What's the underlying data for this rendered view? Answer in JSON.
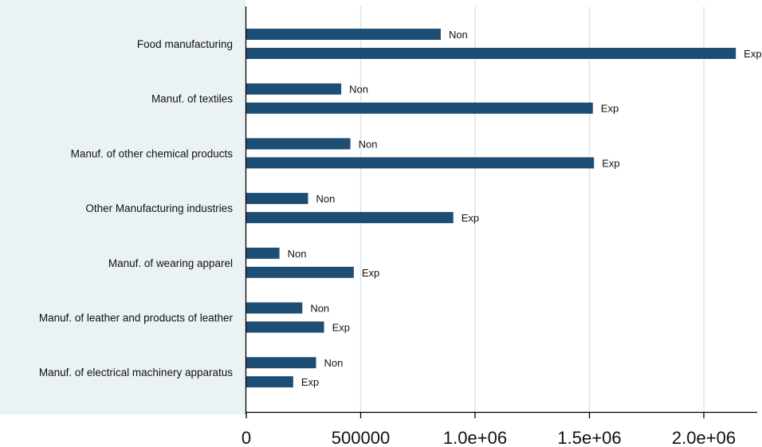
{
  "chart_data": {
    "type": "bar",
    "orientation": "horizontal",
    "categories": [
      "Food manufacturing",
      "Manuf. of textiles",
      "Manuf. of other chemical products",
      "Other Manufacturing industries",
      "Manuf. of wearing apparel",
      "Manuf. of leather and products of leather",
      "Manuf. of electrical machinery apparatus"
    ],
    "series": [
      {
        "name": "Non",
        "values": [
          850000,
          415000,
          455000,
          270000,
          145000,
          245000,
          305000
        ]
      },
      {
        "name": "Exp",
        "values": [
          2140000,
          1515000,
          1520000,
          905000,
          470000,
          340000,
          205000
        ]
      }
    ],
    "xlim": [
      0,
      2220000
    ],
    "x_ticks": [
      0,
      500000,
      1000000,
      1500000,
      2000000
    ],
    "x_tick_labels": [
      "0",
      "500000",
      "1.0e+06",
      "1.5e+06",
      "2.0e+06"
    ],
    "title": "",
    "xlabel": "",
    "ylabel": "",
    "grid": true,
    "legend": "none",
    "colors": {
      "bar": "#1f4e74",
      "label_bg": "#eaf2f3",
      "plot_bg": "#ffffff",
      "grid": "#d8e6ea",
      "axis": "#000000"
    }
  }
}
